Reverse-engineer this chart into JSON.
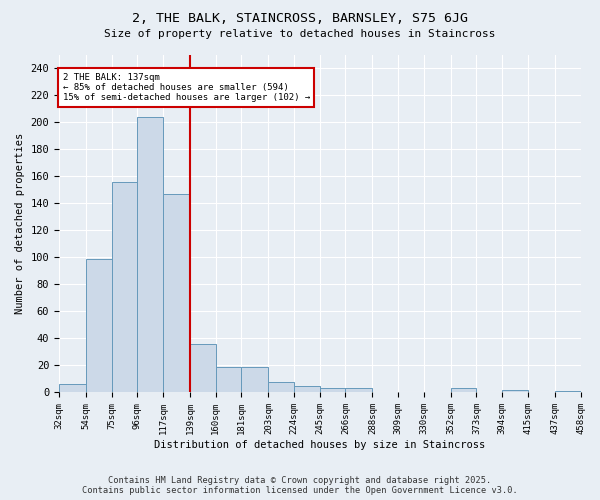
{
  "title": "2, THE BALK, STAINCROSS, BARNSLEY, S75 6JG",
  "subtitle": "Size of property relative to detached houses in Staincross",
  "xlabel": "Distribution of detached houses by size in Staincross",
  "ylabel": "Number of detached properties",
  "bar_values": [
    6,
    99,
    156,
    204,
    147,
    36,
    19,
    19,
    8,
    5,
    3,
    3,
    0,
    0,
    0,
    3,
    0,
    2,
    0,
    1
  ],
  "bin_edges": [
    32,
    54,
    75,
    96,
    117,
    139,
    160,
    181,
    203,
    224,
    245,
    266,
    288,
    309,
    330,
    352,
    373,
    394,
    415,
    437,
    458
  ],
  "tick_labels": [
    "32sqm",
    "54sqm",
    "75sqm",
    "96sqm",
    "117sqm",
    "139sqm",
    "160sqm",
    "181sqm",
    "203sqm",
    "224sqm",
    "245sqm",
    "266sqm",
    "288sqm",
    "309sqm",
    "330sqm",
    "352sqm",
    "373sqm",
    "394sqm",
    "415sqm",
    "437sqm",
    "458sqm"
  ],
  "bar_color": "#ccd9e8",
  "bar_edge_color": "#6699bb",
  "vline_x": 139,
  "vline_color": "#cc0000",
  "annotation_text": "2 THE BALK: 137sqm\n← 85% of detached houses are smaller (594)\n15% of semi-detached houses are larger (102) →",
  "annotation_box_color": "#ffffff",
  "annotation_box_edge": "#cc0000",
  "ylim": [
    0,
    250
  ],
  "yticks": [
    0,
    20,
    40,
    60,
    80,
    100,
    120,
    140,
    160,
    180,
    200,
    220,
    240
  ],
  "bg_color": "#e8eef4",
  "grid_color": "#ffffff",
  "footer": "Contains HM Land Registry data © Crown copyright and database right 2025.\nContains public sector information licensed under the Open Government Licence v3.0."
}
